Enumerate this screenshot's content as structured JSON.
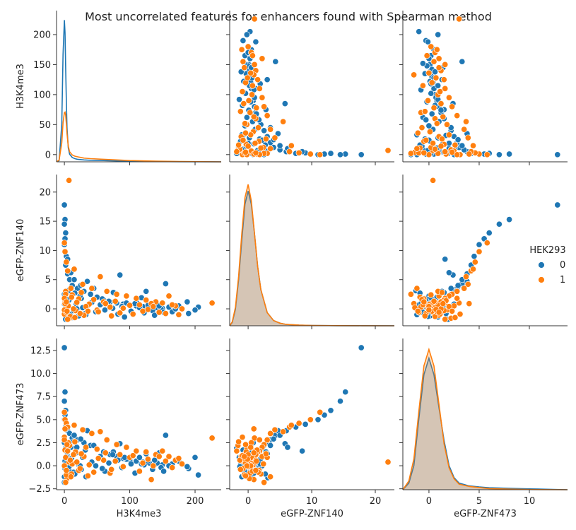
{
  "chart_data": {
    "type": "scatter",
    "kind": "pairplot",
    "title": "Most uncorrelated features for enhancers found with Spearman method",
    "variables": [
      "H3K4me3",
      "eGFP-ZNF140",
      "eGFP-ZNF473"
    ],
    "axis_ranges": {
      "H3K4me3": [
        -12,
        240
      ],
      "eGFP-ZNF140": [
        -2.9,
        23
      ],
      "eGFP-ZNF473": [
        -2.6,
        13.8
      ]
    },
    "ticks": {
      "H3K4me3": [
        0,
        50,
        100,
        150,
        200
      ],
      "H3K4me3_diag_x": [
        0,
        100,
        200
      ],
      "eGFP-ZNF140": [
        0,
        5,
        10,
        15,
        20
      ],
      "eGFP-ZNF140_x": [
        0,
        10,
        20
      ],
      "eGFP-ZNF473": [
        -2.5,
        0.0,
        2.5,
        5.0,
        7.5,
        10.0,
        12.5
      ],
      "eGFP-ZNF473_x": [
        0,
        5,
        10
      ]
    },
    "tick_labels": {
      "H3K4me3": [
        "0",
        "50",
        "100",
        "150",
        "200"
      ],
      "H3K4me3_diag_x": [
        "0",
        "100",
        "200"
      ],
      "eGFP-ZNF140": [
        "0",
        "5",
        "10",
        "15",
        "20"
      ],
      "eGFP-ZNF140_x": [
        "0",
        "10",
        "20"
      ],
      "eGFP-ZNF473": [
        "−2.5",
        "0.0",
        "2.5",
        "5.0",
        "7.5",
        "10.0",
        "12.5"
      ],
      "eGFP-ZNF473_x": [
        "0",
        "5",
        "10"
      ]
    },
    "legend": {
      "title": "HEK293",
      "placement": "right",
      "entries": [
        {
          "label": "0",
          "color": "#1f77b4"
        },
        {
          "label": "1",
          "color": "#ff7f0e"
        }
      ]
    },
    "grid": false,
    "series": [
      {
        "name": "0",
        "color": "#1f77b4",
        "points": [
          [
            0,
            17.8,
            12.8
          ],
          [
            1,
            15.3,
            8.0
          ],
          [
            0,
            14.5,
            7.0
          ],
          [
            2,
            13.0,
            6.0
          ],
          [
            1,
            12.0,
            5.5
          ],
          [
            0,
            11.0,
            5.0
          ],
          [
            3,
            9.0,
            4.5
          ],
          [
            2,
            7.5,
            4.2
          ],
          [
            5,
            6.0,
            3.8
          ],
          [
            8,
            5.0,
            3.5
          ],
          [
            12,
            4.0,
            3.0
          ],
          [
            20,
            3.5,
            2.8
          ],
          [
            30,
            3.0,
            2.5
          ],
          [
            40,
            2.5,
            2.2
          ],
          [
            50,
            2.0,
            1.8
          ],
          [
            60,
            1.5,
            1.5
          ],
          [
            70,
            1.2,
            1.2
          ],
          [
            80,
            1.0,
            1.0
          ],
          [
            90,
            0.8,
            0.8
          ],
          [
            100,
            0.6,
            0.6
          ],
          [
            110,
            0.5,
            0.5
          ],
          [
            120,
            0.4,
            0.4
          ],
          [
            130,
            0.3,
            0.3
          ],
          [
            140,
            0.2,
            0.2
          ],
          [
            150,
            0.1,
            0.1
          ],
          [
            205,
            0.3,
            -1.0
          ],
          [
            190,
            -0.8,
            -0.3
          ],
          [
            175,
            0.5,
            0.5
          ],
          [
            165,
            -0.5,
            0.2
          ],
          [
            155,
            4.3,
            3.3
          ],
          [
            85,
            5.8,
            2.4
          ],
          [
            75,
            2.8,
            1.5
          ],
          [
            125,
            3.0,
            1.3
          ],
          [
            110,
            1.2,
            1.6
          ],
          [
            45,
            3.5,
            2.2
          ],
          [
            35,
            4.7,
            3.8
          ],
          [
            25,
            4.0,
            2.9
          ],
          [
            15,
            5.0,
            3.3
          ],
          [
            10,
            6.2,
            2.0
          ],
          [
            5,
            8.5,
            1.6
          ],
          [
            200,
            -0.2,
            0.9
          ],
          [
            170,
            0.0,
            0.6
          ],
          [
            188,
            1.2,
            -0.1
          ],
          [
            1,
            0.0,
            0.5
          ],
          [
            3,
            0.5,
            -1.0
          ],
          [
            0,
            0.8,
            2.5
          ],
          [
            4,
            -0.6,
            1.2
          ],
          [
            7,
            1.5,
            -0.5
          ],
          [
            9,
            -1.0,
            0.3
          ],
          [
            11,
            2.0,
            0.8
          ],
          [
            14,
            -0.3,
            -0.7
          ],
          [
            18,
            0.9,
            1.4
          ],
          [
            22,
            -1.2,
            0.1
          ],
          [
            26,
            1.8,
            -0.4
          ],
          [
            28,
            0.2,
            0.9
          ],
          [
            32,
            -0.8,
            1.7
          ],
          [
            36,
            0.6,
            -1.1
          ],
          [
            42,
            1.1,
            0.4
          ],
          [
            48,
            -0.5,
            0.0
          ],
          [
            55,
            0.7,
            1.0
          ],
          [
            62,
            -0.2,
            -0.6
          ],
          [
            68,
            1.3,
            0.3
          ],
          [
            74,
            0.1,
            1.2
          ],
          [
            82,
            -0.9,
            0.6
          ],
          [
            88,
            0.4,
            -0.2
          ],
          [
            95,
            1.0,
            0.7
          ],
          [
            102,
            -0.4,
            0.2
          ],
          [
            108,
            0.9,
            -0.8
          ],
          [
            115,
            0.2,
            0.9
          ],
          [
            122,
            -0.7,
            0.1
          ],
          [
            128,
            0.6,
            0.5
          ],
          [
            135,
            -0.3,
            -0.4
          ],
          [
            142,
            0.8,
            0.3
          ],
          [
            148,
            0.0,
            -0.2
          ],
          [
            160,
            0.3,
            0.0
          ],
          [
            0,
            2.5,
            -1.8
          ],
          [
            2,
            -1.8,
            1.9
          ],
          [
            6,
            3.1,
            -1.3
          ],
          [
            13,
            -1.5,
            2.6
          ],
          [
            16,
            2.7,
            -0.9
          ],
          [
            3,
            1.0,
            1.0
          ],
          [
            1,
            -0.5,
            -0.3
          ],
          [
            2,
            0.4,
            0.2
          ],
          [
            0,
            -0.1,
            -1.2
          ],
          [
            4,
            1.6,
            1.5
          ],
          [
            7,
            -1.3,
            -0.1
          ],
          [
            19,
            0.0,
            2.0
          ],
          [
            24,
            2.2,
            0.0
          ],
          [
            33,
            -1.0,
            -1.2
          ],
          [
            58,
            1.7,
            -0.3
          ],
          [
            92,
            -1.4,
            0.9
          ],
          [
            118,
            1.9,
            0.2
          ],
          [
            138,
            -1.1,
            0.6
          ],
          [
            145,
            0.5,
            1.4
          ],
          [
            152,
            -0.6,
            -0.6
          ]
        ]
      },
      {
        "name": "1",
        "color": "#ff7f0e",
        "points": [
          [
            226,
            1.0,
            3.0
          ],
          [
            7,
            22.0,
            0.4
          ],
          [
            0,
            11.3,
            5.8
          ],
          [
            1,
            9.8,
            5.0
          ],
          [
            3,
            8.0,
            4.6
          ],
          [
            5,
            6.5,
            4.2
          ],
          [
            15,
            6.8,
            4.4
          ],
          [
            28,
            4.2,
            3.9
          ],
          [
            42,
            3.5,
            3.5
          ],
          [
            55,
            5.5,
            3.7
          ],
          [
            65,
            3.0,
            2.8
          ],
          [
            80,
            2.5,
            2.3
          ],
          [
            95,
            2.2,
            2.0
          ],
          [
            110,
            1.8,
            1.6
          ],
          [
            125,
            1.5,
            1.5
          ],
          [
            140,
            1.2,
            1.2
          ],
          [
            150,
            1.0,
            1.6
          ],
          [
            160,
            2.2,
            1.0
          ],
          [
            170,
            0.5,
            0.6
          ],
          [
            180,
            0.0,
            0.2
          ],
          [
            155,
            -0.8,
            0.5
          ],
          [
            165,
            0.7,
            -0.2
          ],
          [
            175,
            -1.0,
            0.8
          ],
          [
            133,
            0.9,
            -1.5
          ],
          [
            120,
            -0.4,
            0.3
          ],
          [
            100,
            0.6,
            0.9
          ],
          [
            85,
            -0.7,
            1.2
          ],
          [
            70,
            0.3,
            -0.8
          ],
          [
            60,
            1.2,
            0.6
          ],
          [
            50,
            -0.2,
            1.8
          ],
          [
            38,
            0.8,
            0.1
          ],
          [
            30,
            -1.1,
            1.0
          ],
          [
            22,
            1.7,
            -0.5
          ],
          [
            17,
            -0.3,
            1.5
          ],
          [
            12,
            2.4,
            0.2
          ],
          [
            8,
            -1.6,
            2.2
          ],
          [
            4,
            0.2,
            -1.4
          ],
          [
            2,
            3.0,
            0.9
          ],
          [
            0,
            -0.9,
            3.1
          ],
          [
            1,
            1.4,
            1.7
          ],
          [
            3,
            -0.6,
            -1.0
          ],
          [
            6,
            0.5,
            2.5
          ],
          [
            9,
            -1.3,
            0.6
          ],
          [
            11,
            2.0,
            -0.9
          ],
          [
            14,
            0.0,
            1.2
          ],
          [
            19,
            1.1,
            0.4
          ],
          [
            24,
            -0.8,
            -0.3
          ],
          [
            33,
            0.4,
            2.0
          ],
          [
            45,
            1.6,
            -0.7
          ],
          [
            52,
            -0.5,
            0.8
          ],
          [
            63,
            0.9,
            1.4
          ],
          [
            72,
            -1.2,
            -0.4
          ],
          [
            78,
            1.3,
            0.5
          ],
          [
            90,
            0.1,
            -0.1
          ],
          [
            105,
            -0.9,
            1.1
          ],
          [
            115,
            0.7,
            -0.6
          ],
          [
            128,
            -0.1,
            0.7
          ],
          [
            136,
            0.4,
            0.0
          ],
          [
            145,
            -0.6,
            1.0
          ],
          [
            2,
            2.5,
            -1.8
          ],
          [
            0,
            1.8,
            2.8
          ],
          [
            5,
            -1.8,
            1.6
          ],
          [
            10,
            3.5,
            -1.2
          ],
          [
            16,
            -1.5,
            2.6
          ],
          [
            26,
            2.8,
            1.3
          ],
          [
            36,
            -0.4,
            -1.1
          ],
          [
            1,
            0.9,
            4.0
          ],
          [
            0,
            -0.2,
            0.0
          ],
          [
            3,
            1.2,
            -0.5
          ],
          [
            4,
            -0.4,
            2.3
          ]
        ]
      }
    ],
    "kde": {
      "H3K4me3": {
        "x": [
          -12,
          -8,
          -4,
          -2,
          0,
          1,
          2,
          3,
          4,
          6,
          8,
          12,
          16,
          20,
          30,
          40,
          60,
          80,
          100,
          140,
          180,
          240
        ],
        "y0": [
          0,
          2,
          60,
          170,
          225,
          205,
          150,
          95,
          55,
          22,
          12,
          7,
          5,
          4,
          3,
          2.5,
          2,
          1.5,
          1,
          0.5,
          0.2,
          0
        ],
        "y1": [
          0,
          3,
          30,
          62,
          78,
          79,
          74,
          60,
          45,
          25,
          16,
          11,
          9,
          8,
          6,
          5,
          4,
          3,
          2,
          1,
          0.5,
          0
        ]
      },
      "eGFP-ZNF140": {
        "x": [
          -2.9,
          -2.5,
          -2,
          -1.5,
          -1,
          -0.5,
          0,
          0.5,
          1,
          1.5,
          2,
          3,
          4,
          5,
          6,
          8,
          10,
          14,
          18,
          23
        ],
        "y0": [
          0,
          0.5,
          2.5,
          7,
          13,
          18.5,
          20.5,
          18.5,
          14,
          9,
          5.5,
          2,
          0.8,
          0.4,
          0.2,
          0.1,
          0.05,
          0.02,
          0.01,
          0
        ],
        "y1": [
          0,
          0.6,
          2.8,
          7.5,
          14,
          19.5,
          21.5,
          19,
          14,
          9,
          5.5,
          2,
          0.8,
          0.4,
          0.2,
          0.1,
          0.05,
          0.02,
          0.01,
          0
        ]
      },
      "eGFP-ZNF473": {
        "x": [
          -2.6,
          -2,
          -1.5,
          -1,
          -0.5,
          0,
          0.5,
          1,
          1.5,
          2,
          2.5,
          3,
          4,
          5,
          6,
          8,
          10,
          13.8
        ],
        "y0": [
          0,
          0.6,
          2.2,
          6.5,
          10.5,
          12.0,
          10.5,
          7.5,
          4.5,
          2.2,
          1.1,
          0.6,
          0.35,
          0.25,
          0.18,
          0.12,
          0.08,
          0
        ],
        "y1": [
          0,
          0.8,
          2.8,
          7.2,
          11.3,
          12.8,
          11.3,
          7.8,
          4.2,
          2.0,
          1.0,
          0.5,
          0.3,
          0.2,
          0.1,
          0.05,
          0.02,
          0
        ]
      }
    },
    "kde_ylim": {
      "H3K4me3": [
        0,
        240
      ],
      "eGFP-ZNF140": [
        0,
        23
      ],
      "eGFP-ZNF473": [
        0,
        13.8
      ]
    }
  }
}
